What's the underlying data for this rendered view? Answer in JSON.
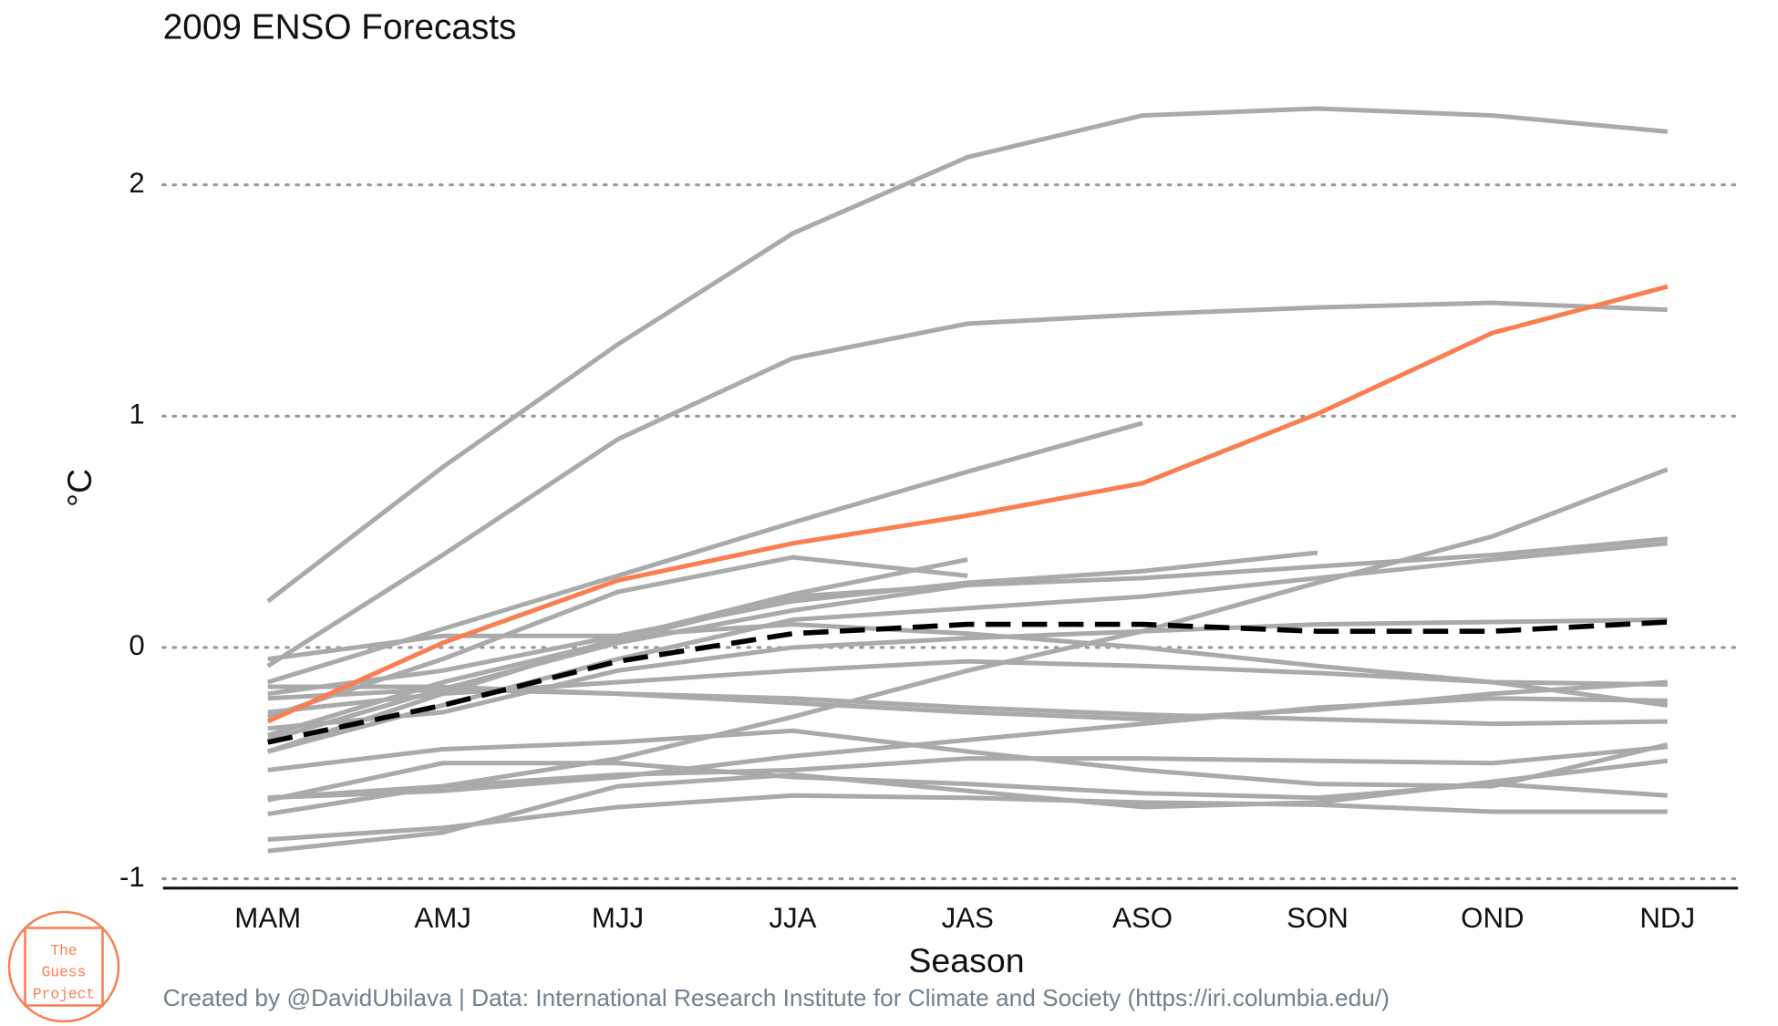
{
  "chart_data": {
    "type": "line",
    "title": "2009 ENSO Forecasts",
    "x_label": "Season",
    "y_label": "°C",
    "caption": "Created by @DavidUbilava | Data: International Research Institute for Climate and Society (https://iri.columbia.edu/)",
    "logo": [
      "The",
      "Guess",
      "Project"
    ],
    "categories": [
      "MAM",
      "AMJ",
      "MJJ",
      "JJA",
      "JAS",
      "ASO",
      "SON",
      "OND",
      "NDJ"
    ],
    "ylim": [
      -1.05,
      2.4
    ],
    "yticks": [
      -1,
      0,
      1,
      2
    ],
    "grid": true,
    "series": [
      {
        "color": "#aaaaaa",
        "values": [
          0.2,
          0.78,
          1.31,
          1.79,
          2.12,
          2.3,
          2.33,
          2.3,
          2.23
        ]
      },
      {
        "color": "#aaaaaa",
        "values": [
          -0.08,
          0.4,
          0.9,
          1.25,
          1.4,
          1.44,
          1.47,
          1.49,
          1.46
        ]
      },
      {
        "color": "#aaaaaa",
        "values": [
          -0.15,
          0.08,
          0.31,
          0.54,
          0.76,
          0.97,
          null,
          null,
          null
        ]
      },
      {
        "color": "#aaaaaa",
        "values": [
          -0.72,
          -0.6,
          -0.48,
          -0.3,
          -0.1,
          0.07,
          0.28,
          0.48,
          0.77
        ]
      },
      {
        "color": "#aaaaaa",
        "values": [
          -0.2,
          -0.1,
          0.05,
          0.2,
          0.28,
          0.33,
          0.41,
          null,
          null
        ]
      },
      {
        "color": "#aaaaaa",
        "values": [
          -0.3,
          -0.05,
          0.24,
          0.39,
          0.31,
          null,
          null,
          null,
          null
        ]
      },
      {
        "color": "#aaaaaa",
        "values": [
          -0.45,
          -0.2,
          0.04,
          0.23,
          0.38,
          null,
          null,
          null,
          null
        ]
      },
      {
        "color": "#aaaaaa",
        "values": [
          -0.4,
          -0.18,
          0.02,
          0.16,
          0.27,
          null,
          null,
          null,
          null
        ]
      },
      {
        "color": "#aaaaaa",
        "values": [
          -0.38,
          -0.15,
          0.03,
          0.22,
          0.27,
          0.3,
          0.35,
          0.4,
          0.47
        ]
      },
      {
        "color": "#aaaaaa",
        "values": [
          -0.45,
          -0.25,
          -0.05,
          0.12,
          0.17,
          0.22,
          0.3,
          0.38,
          0.45
        ]
      },
      {
        "color": "#aaaaaa",
        "values": [
          -0.35,
          -0.28,
          -0.1,
          0.0,
          0.04,
          0.07,
          0.1,
          0.11,
          0.12
        ]
      },
      {
        "color": "#aaaaaa",
        "values": [
          -0.17,
          -0.17,
          -0.2,
          -0.24,
          -0.28,
          -0.31,
          -0.27,
          -0.2,
          -0.15
        ]
      },
      {
        "color": "#aaaaaa",
        "values": [
          -0.05,
          0.05,
          0.05,
          0.1,
          0.06,
          0.0,
          -0.08,
          -0.15,
          -0.16
        ]
      },
      {
        "color": "#aaaaaa",
        "values": [
          -0.28,
          -0.2,
          -0.15,
          -0.1,
          -0.06,
          -0.08,
          -0.11,
          -0.15,
          -0.25
        ]
      },
      {
        "color": "#aaaaaa",
        "values": [
          -0.22,
          -0.18,
          -0.2,
          -0.22,
          -0.26,
          -0.29,
          -0.31,
          -0.33,
          -0.32
        ]
      },
      {
        "color": "#aaaaaa",
        "values": [
          -0.65,
          -0.62,
          -0.56,
          -0.47,
          -0.4,
          -0.33,
          -0.26,
          -0.22,
          -0.23
        ]
      },
      {
        "color": "#aaaaaa",
        "values": [
          -0.53,
          -0.44,
          -0.41,
          -0.36,
          -0.45,
          -0.53,
          -0.59,
          -0.6,
          -0.42
        ]
      },
      {
        "color": "#aaaaaa",
        "values": [
          -0.65,
          -0.6,
          -0.55,
          -0.53,
          -0.48,
          -0.48,
          -0.49,
          -0.5,
          -0.43
        ]
      },
      {
        "color": "#aaaaaa",
        "values": [
          -0.66,
          -0.5,
          -0.5,
          -0.56,
          -0.59,
          -0.63,
          -0.65,
          -0.59,
          -0.64
        ]
      },
      {
        "color": "#aaaaaa",
        "values": [
          -0.83,
          -0.78,
          -0.69,
          -0.64,
          -0.65,
          -0.67,
          -0.68,
          -0.71,
          -0.71
        ]
      },
      {
        "color": "#aaaaaa",
        "values": [
          -0.88,
          -0.8,
          -0.6,
          -0.55,
          -0.62,
          -0.69,
          -0.67,
          -0.58,
          -0.49
        ]
      },
      {
        "color": "#f97f51",
        "values": [
          -0.32,
          0.02,
          0.29,
          0.45,
          0.57,
          0.71,
          1.01,
          1.36,
          1.56
        ]
      },
      {
        "color": "#000000",
        "dashed": true,
        "values": [
          -0.41,
          -0.25,
          -0.06,
          0.06,
          0.1,
          0.1,
          0.07,
          0.07,
          0.11
        ]
      }
    ]
  }
}
